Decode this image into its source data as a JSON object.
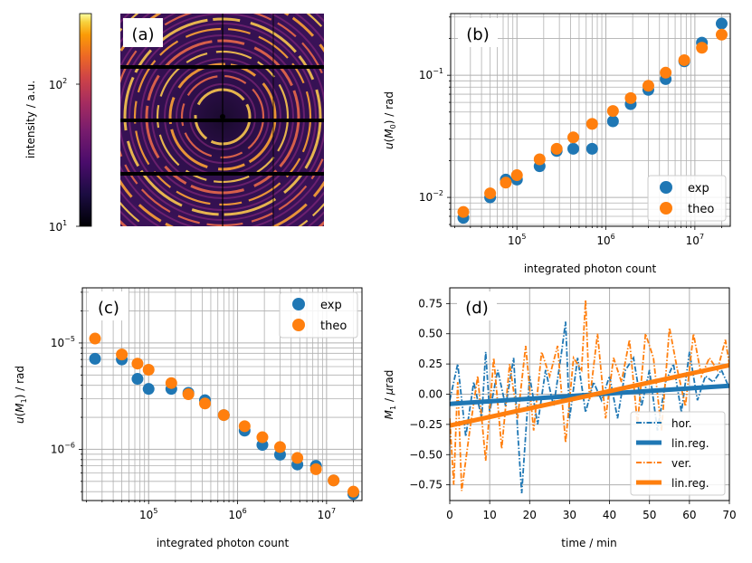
{
  "chart_data": [
    {
      "panel": "a",
      "type": "heatmap",
      "panel_label": "(a)",
      "title": "",
      "colorbar": {
        "label": "intensity / a.u.",
        "scale": "log",
        "range": [
          10,
          300
        ],
        "ticks": [
          {
            "value": 10,
            "label": "10",
            "exp": "1"
          },
          {
            "value": 100,
            "label": "10",
            "exp": "2"
          }
        ],
        "colormap": "inferno"
      }
    },
    {
      "panel": "b",
      "type": "scatter",
      "panel_label": "(b)",
      "xlabel": "integrated photon count",
      "ylabel": "u(M0) / rad",
      "xscale": "log",
      "yscale": "log",
      "xlim": [
        18000,
        25000000
      ],
      "ylim": [
        0.0058,
        0.32
      ],
      "xticks": [
        {
          "value": 100000,
          "label": "10",
          "exp": "5"
        },
        {
          "value": 1000000,
          "label": "10",
          "exp": "6"
        },
        {
          "value": 10000000,
          "label": "10",
          "exp": "7"
        }
      ],
      "yticks": [
        {
          "value": 0.01,
          "label": "10",
          "exp": "−2"
        },
        {
          "value": 0.1,
          "label": "10",
          "exp": "−1"
        }
      ],
      "legend": {
        "position": "bottom-right"
      },
      "series": [
        {
          "name": "exp",
          "color": "#1f77b4",
          "x": [
            25000,
            50000,
            75000,
            100000,
            180000,
            280000,
            430000,
            700000,
            1200000,
            1900000,
            3000000,
            4700000,
            7600000,
            12000000,
            20000000
          ],
          "y": [
            0.0068,
            0.01,
            0.014,
            0.014,
            0.018,
            0.024,
            0.025,
            0.025,
            0.042,
            0.058,
            0.076,
            0.093,
            0.13,
            0.185,
            0.265
          ]
        },
        {
          "name": "theo",
          "color": "#ff7f0e",
          "x": [
            25000,
            50000,
            75000,
            100000,
            180000,
            280000,
            430000,
            700000,
            1200000,
            1900000,
            3000000,
            4700000,
            7600000,
            12000000,
            20000000
          ],
          "y": [
            0.0076,
            0.0108,
            0.0132,
            0.0152,
            0.0205,
            0.025,
            0.031,
            0.04,
            0.051,
            0.065,
            0.082,
            0.105,
            0.133,
            0.168,
            0.215
          ]
        }
      ]
    },
    {
      "panel": "c",
      "type": "scatter",
      "panel_label": "(c)",
      "xlabel": "integrated photon count",
      "ylabel": "u(M1) / rad",
      "xscale": "log",
      "yscale": "log",
      "xlim": [
        18000,
        25000000
      ],
      "ylim": [
        3.3e-07,
        3.3e-05
      ],
      "xticks": [
        {
          "value": 100000,
          "label": "10",
          "exp": "5"
        },
        {
          "value": 1000000,
          "label": "10",
          "exp": "6"
        },
        {
          "value": 10000000,
          "label": "10",
          "exp": "7"
        }
      ],
      "yticks": [
        {
          "value": 1e-06,
          "label": "10",
          "exp": "−6"
        },
        {
          "value": 1e-05,
          "label": "10",
          "exp": "−5"
        }
      ],
      "legend": {
        "position": "top-right"
      },
      "series": [
        {
          "name": "exp",
          "color": "#1f77b4",
          "x": [
            25000,
            50000,
            75000,
            100000,
            180000,
            280000,
            430000,
            700000,
            1200000,
            1900000,
            3000000,
            4700000,
            7600000,
            12000000,
            20000000
          ],
          "y": [
            7.1e-06,
            7e-06,
            4.6e-06,
            3.7e-06,
            3.7e-06,
            3.4e-06,
            2.9e-06,
            2.1e-06,
            1.5e-06,
            1.1e-06,
            8.9e-07,
            7.2e-07,
            7e-07,
            5.1e-07,
            3.8e-07
          ]
        },
        {
          "name": "theo",
          "color": "#ff7f0e",
          "x": [
            25000,
            50000,
            75000,
            100000,
            180000,
            280000,
            430000,
            700000,
            1200000,
            1900000,
            3000000,
            4700000,
            7600000,
            12000000,
            20000000
          ],
          "y": [
            1.1e-05,
            7.8e-06,
            6.4e-06,
            5.6e-06,
            4.2e-06,
            3.3e-06,
            2.7e-06,
            2.1e-06,
            1.65e-06,
            1.3e-06,
            1.05e-06,
            8.3e-07,
            6.5e-07,
            5.1e-07,
            4e-07
          ]
        }
      ]
    },
    {
      "panel": "d",
      "type": "line",
      "panel_label": "(d)",
      "xlabel": "time / min",
      "ylabel": "M1 / µrad",
      "xlim": [
        0,
        70
      ],
      "ylim": [
        -0.88,
        0.88
      ],
      "xticks": [
        0,
        10,
        20,
        30,
        40,
        50,
        60,
        70
      ],
      "yticks": [
        -0.75,
        -0.5,
        -0.25,
        0.0,
        0.25,
        0.5,
        0.75
      ],
      "legend": {
        "position": "bottom-right"
      },
      "series": [
        {
          "name": "hor.",
          "color": "#1f77b4",
          "style": "dashdot",
          "x": [
            0,
            2,
            4,
            6,
            8,
            9,
            10,
            12,
            14,
            16,
            17,
            18,
            20,
            22,
            24,
            26,
            28,
            29,
            30,
            32,
            34,
            36,
            38,
            40,
            42,
            44,
            46,
            48,
            50,
            52,
            54,
            56,
            58,
            60,
            62,
            64,
            66,
            68,
            70
          ],
          "y": [
            -0.05,
            0.25,
            -0.35,
            0.1,
            -0.2,
            0.35,
            -0.15,
            0.2,
            -0.1,
            0.3,
            -0.3,
            -0.82,
            0.15,
            -0.25,
            0.2,
            -0.1,
            0.35,
            0.6,
            -0.2,
            0.3,
            -0.15,
            0.1,
            -0.05,
            0.15,
            -0.2,
            0.2,
            0.3,
            -0.1,
            0.2,
            -0.3,
            0.1,
            0.25,
            -0.15,
            0.35,
            -0.05,
            0.15,
            0.1,
            0.2,
            0.05
          ]
        },
        {
          "name": "lin.reg.",
          "color": "#1f77b4",
          "style": "solid",
          "x": [
            0,
            70
          ],
          "y": [
            -0.08,
            0.07
          ]
        },
        {
          "name": "ver.",
          "color": "#ff7f0e",
          "style": "dashdot",
          "x": [
            0,
            1,
            2,
            3,
            5,
            7,
            9,
            11,
            13,
            15,
            17,
            19,
            21,
            23,
            25,
            27,
            29,
            31,
            33,
            34,
            35,
            37,
            39,
            41,
            43,
            45,
            47,
            49,
            51,
            53,
            55,
            57,
            59,
            61,
            63,
            65,
            67,
            69,
            70
          ],
          "y": [
            -0.2,
            -0.75,
            0.1,
            -0.8,
            -0.3,
            0.15,
            -0.55,
            0.3,
            -0.45,
            0.25,
            -0.2,
            0.4,
            -0.3,
            0.35,
            0.15,
            0.4,
            -0.4,
            0.3,
            0.2,
            0.78,
            -0.05,
            0.5,
            -0.2,
            0.3,
            0.1,
            0.45,
            -0.25,
            0.5,
            0.3,
            -0.3,
            0.55,
            0.2,
            -0.1,
            0.5,
            0.15,
            0.3,
            0.2,
            0.45,
            0.25
          ]
        },
        {
          "name": "lin.reg.",
          "color": "#ff7f0e",
          "style": "solid",
          "x": [
            0,
            70
          ],
          "y": [
            -0.26,
            0.24
          ]
        }
      ]
    }
  ]
}
